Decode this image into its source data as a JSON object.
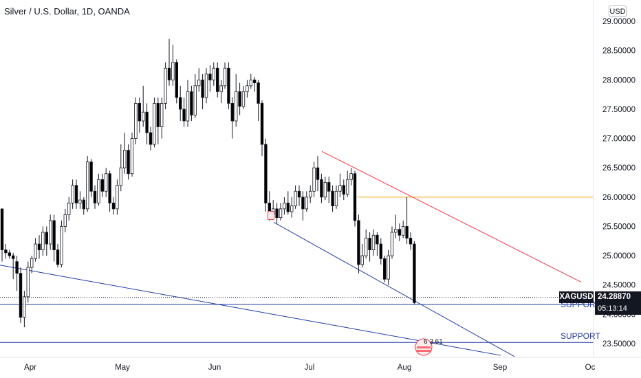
{
  "header": {
    "title": "Silver / U.S. Dollar, 1D, OANDA",
    "currency_button": "USD"
  },
  "price_tag": {
    "symbol": "XAGUSD",
    "price": "24.28870",
    "countdown": "05:13:14"
  },
  "annotations": {
    "support_upper": "SUPPORT",
    "support_lower": "SUPPORT",
    "event_numbers": "6 3 61"
  },
  "colors": {
    "up_candle": "#ffffff",
    "down_candle": "#000000",
    "resistance_line": "#f23645",
    "support_trend": "#1e3aa8",
    "horizontal_level": "#f5a623",
    "support_level": "#1e3aa8"
  },
  "chart_data": {
    "type": "candlestick",
    "title": "Silver / U.S. Dollar, 1D, OANDA",
    "y_axis": {
      "ticks": [
        "29.00000",
        "28.50000",
        "28.00000",
        "27.50000",
        "27.00000",
        "26.50000",
        "26.00000",
        "25.50000",
        "25.00000",
        "24.50000",
        "24.00000",
        "23.50000"
      ],
      "min": 23.3,
      "max": 29.1
    },
    "x_axis": {
      "ticks": [
        "Apr",
        "May",
        "Jun",
        "Jul",
        "Aug",
        "Sep",
        "Oc"
      ]
    },
    "last_price": 24.2887,
    "horizontal_levels": [
      {
        "name": "resistance",
        "price": 26.0
      },
      {
        "name": "support",
        "price": 24.17
      },
      {
        "name": "support",
        "price": 23.52
      }
    ],
    "trend_lines": [
      {
        "name": "falling-resistance",
        "from": [
          "Jul",
          26.78
        ],
        "to": [
          "Sep",
          24.5
        ]
      },
      {
        "name": "falling-support",
        "from": [
          "Jun",
          25.55
        ],
        "to": [
          "Sep",
          23.28
        ]
      },
      {
        "name": "long-support",
        "from": [
          "Mar",
          24.8
        ],
        "to": [
          "Sep",
          23.3
        ]
      }
    ],
    "candles": [
      [
        25.8,
        25.1,
        25.8,
        24.9
      ],
      [
        25.1,
        25.05,
        25.2,
        24.95
      ],
      [
        25.05,
        25.0,
        25.1,
        24.95
      ],
      [
        25.0,
        24.95,
        25.05,
        24.6
      ],
      [
        24.9,
        24.7,
        25.0,
        24.4
      ],
      [
        24.7,
        23.95,
        24.8,
        23.85
      ],
      [
        23.95,
        24.3,
        24.4,
        23.78
      ],
      [
        24.3,
        24.8,
        24.9,
        24.2
      ],
      [
        24.8,
        24.95,
        25.0,
        24.7
      ],
      [
        24.95,
        25.2,
        25.3,
        24.9
      ],
      [
        25.2,
        25.1,
        25.35,
        24.95
      ],
      [
        25.1,
        25.4,
        25.5,
        25.0
      ],
      [
        25.4,
        25.2,
        25.5,
        25.0
      ],
      [
        25.2,
        25.6,
        25.7,
        25.1
      ],
      [
        25.6,
        25.1,
        25.7,
        24.9
      ],
      [
        25.1,
        24.85,
        25.2,
        24.8
      ],
      [
        24.85,
        25.5,
        25.6,
        24.8
      ],
      [
        25.5,
        25.7,
        25.8,
        25.4
      ],
      [
        25.7,
        25.9,
        26.0,
        25.6
      ],
      [
        25.9,
        26.2,
        26.3,
        25.8
      ],
      [
        26.2,
        25.9,
        26.3,
        25.8
      ],
      [
        25.9,
        25.95,
        26.1,
        25.8
      ],
      [
        25.95,
        25.8,
        26.0,
        25.7
      ],
      [
        25.8,
        26.6,
        26.7,
        25.75
      ],
      [
        26.6,
        26.1,
        26.65,
        26.0
      ],
      [
        26.1,
        25.9,
        26.2,
        25.8
      ],
      [
        25.9,
        26.3,
        26.4,
        25.85
      ],
      [
        26.3,
        26.1,
        26.4,
        26.0
      ],
      [
        26.1,
        26.4,
        26.5,
        26.0
      ],
      [
        26.4,
        25.9,
        26.45,
        25.75
      ],
      [
        25.9,
        25.8,
        26.0,
        25.7
      ],
      [
        25.8,
        26.2,
        26.3,
        25.7
      ],
      [
        26.2,
        26.5,
        26.9,
        26.1
      ],
      [
        26.5,
        26.8,
        27.1,
        26.4
      ],
      [
        26.8,
        26.4,
        26.9,
        26.3
      ],
      [
        26.4,
        27.0,
        27.1,
        26.35
      ],
      [
        27.0,
        27.6,
        27.7,
        26.9
      ],
      [
        27.6,
        27.3,
        27.7,
        27.1
      ],
      [
        27.3,
        27.45,
        27.9,
        27.2
      ],
      [
        27.45,
        27.1,
        27.6,
        26.9
      ],
      [
        27.1,
        26.9,
        27.2,
        26.8
      ],
      [
        26.9,
        27.6,
        27.7,
        26.85
      ],
      [
        27.6,
        27.2,
        27.7,
        26.9
      ],
      [
        27.2,
        27.6,
        27.7,
        27.0
      ],
      [
        27.6,
        28.2,
        28.3,
        27.5
      ],
      [
        28.2,
        28.0,
        28.7,
        27.9
      ],
      [
        28.0,
        28.3,
        28.6,
        27.9
      ],
      [
        28.3,
        27.7,
        28.35,
        27.6
      ],
      [
        27.7,
        27.5,
        27.9,
        27.3
      ],
      [
        27.5,
        27.3,
        27.7,
        27.2
      ],
      [
        27.3,
        27.8,
        28.0,
        27.2
      ],
      [
        27.8,
        27.4,
        27.9,
        27.3
      ],
      [
        27.4,
        27.9,
        28.1,
        27.35
      ],
      [
        27.9,
        28.0,
        28.2,
        27.8
      ],
      [
        28.0,
        27.7,
        28.1,
        27.5
      ],
      [
        27.7,
        28.1,
        28.2,
        27.6
      ],
      [
        28.1,
        28.0,
        28.25,
        27.8
      ],
      [
        28.0,
        28.2,
        28.3,
        27.9
      ],
      [
        28.2,
        27.8,
        28.3,
        27.7
      ],
      [
        27.8,
        27.9,
        28.0,
        27.6
      ],
      [
        27.9,
        28.2,
        28.3,
        27.85
      ],
      [
        28.2,
        27.6,
        28.3,
        27.5
      ],
      [
        27.6,
        27.3,
        27.7,
        27.0
      ],
      [
        27.3,
        27.8,
        28.1,
        27.2
      ],
      [
        27.8,
        27.55,
        27.95,
        27.4
      ],
      [
        27.55,
        27.8,
        27.9,
        27.5
      ],
      [
        27.8,
        27.9,
        28.0,
        27.7
      ],
      [
        27.9,
        28.0,
        28.1,
        27.85
      ],
      [
        28.0,
        27.95,
        28.05,
        27.8
      ],
      [
        27.95,
        27.6,
        28.0,
        27.3
      ],
      [
        27.6,
        26.9,
        27.65,
        26.7
      ],
      [
        26.9,
        25.9,
        27.0,
        25.75
      ],
      [
        25.9,
        25.7,
        26.1,
        25.6
      ],
      [
        25.7,
        25.8,
        25.95,
        25.65
      ],
      [
        25.8,
        25.65,
        25.9,
        25.55
      ],
      [
        25.65,
        25.8,
        25.9,
        25.6
      ],
      [
        25.8,
        25.9,
        26.0,
        25.7
      ],
      [
        25.9,
        25.75,
        26.1,
        25.7
      ],
      [
        25.75,
        25.85,
        26.0,
        25.65
      ],
      [
        25.85,
        26.1,
        26.2,
        25.8
      ],
      [
        26.1,
        26.0,
        26.2,
        25.85
      ],
      [
        26.0,
        25.8,
        26.1,
        25.6
      ],
      [
        25.8,
        26.0,
        26.1,
        25.75
      ],
      [
        26.0,
        26.1,
        26.2,
        25.9
      ],
      [
        26.1,
        26.5,
        26.6,
        26.0
      ],
      [
        26.5,
        26.3,
        26.7,
        26.1
      ],
      [
        26.3,
        26.0,
        26.4,
        25.9
      ],
      [
        26.0,
        26.25,
        26.35,
        25.95
      ],
      [
        26.25,
        26.1,
        26.35,
        25.9
      ],
      [
        26.1,
        25.85,
        26.2,
        25.75
      ],
      [
        25.85,
        26.1,
        26.2,
        25.8
      ],
      [
        26.1,
        26.2,
        26.4,
        26.0
      ],
      [
        26.2,
        26.05,
        26.3,
        25.95
      ],
      [
        26.05,
        26.3,
        26.45,
        26.0
      ],
      [
        26.3,
        26.4,
        26.5,
        26.2
      ],
      [
        26.4,
        25.6,
        26.45,
        25.5
      ],
      [
        25.6,
        24.85,
        25.7,
        24.7
      ],
      [
        24.85,
        25.0,
        25.2,
        24.8
      ],
      [
        25.0,
        25.3,
        25.45,
        24.95
      ],
      [
        25.3,
        25.1,
        25.4,
        24.9
      ],
      [
        25.1,
        25.35,
        25.45,
        25.0
      ],
      [
        25.35,
        25.2,
        25.4,
        25.0
      ],
      [
        25.2,
        24.95,
        25.3,
        24.85
      ],
      [
        24.95,
        24.6,
        25.0,
        24.55
      ],
      [
        24.6,
        25.0,
        25.1,
        24.5
      ],
      [
        25.0,
        25.4,
        25.5,
        24.95
      ],
      [
        25.4,
        25.45,
        25.7,
        25.3
      ],
      [
        25.45,
        25.35,
        25.55,
        25.25
      ],
      [
        25.35,
        25.5,
        25.6,
        25.3
      ],
      [
        25.5,
        25.3,
        26.0,
        25.2
      ],
      [
        25.3,
        25.2,
        25.4,
        25.1
      ],
      [
        25.2,
        24.2,
        25.25,
        24.17
      ]
    ]
  }
}
